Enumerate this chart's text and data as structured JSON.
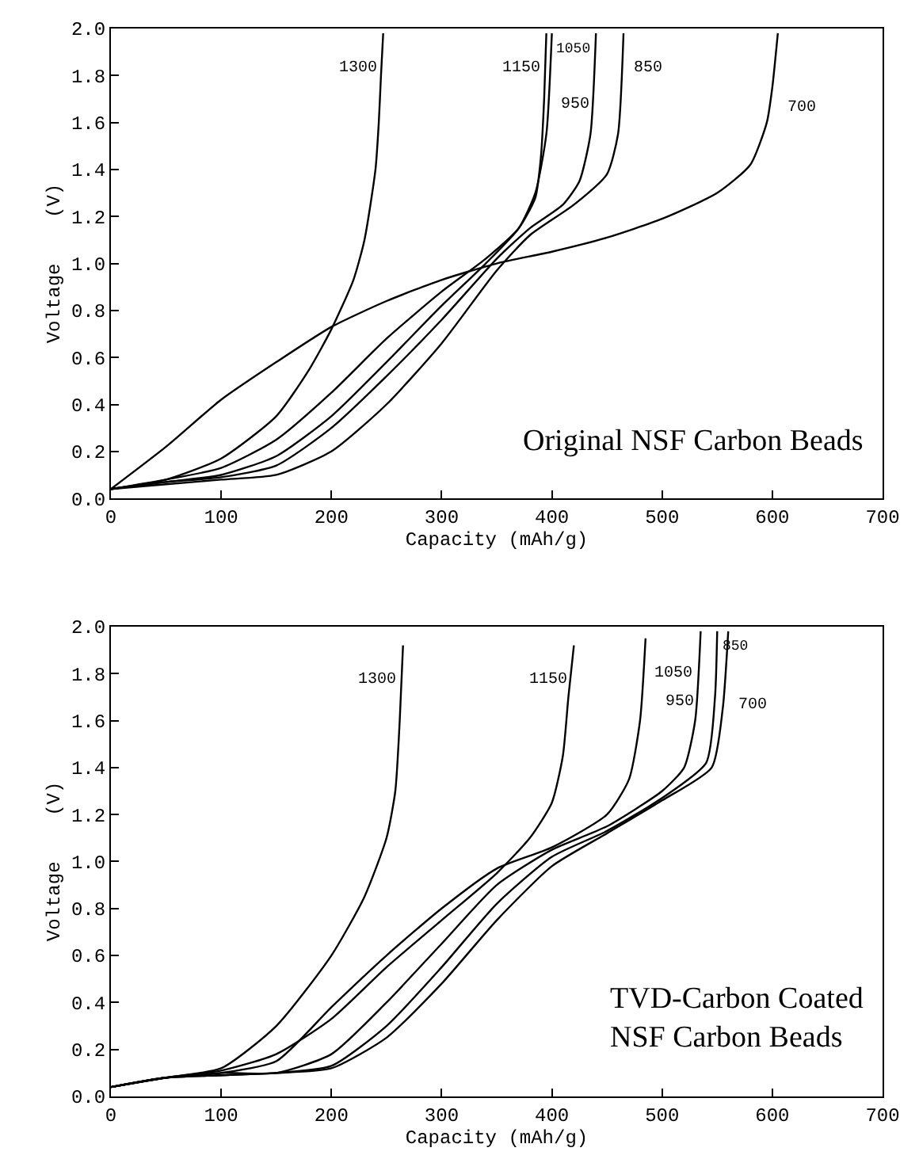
{
  "chart_data": [
    {
      "type": "line",
      "xlabel": "Capacity (mAh/g)",
      "ylabel": "Voltage    (V)",
      "xlim": [
        0,
        700
      ],
      "ylim": [
        0,
        2
      ],
      "xticks": [
        0,
        100,
        200,
        300,
        400,
        500,
        600,
        700
      ],
      "yticks": [
        {
          "value": 0,
          "label": "0.0"
        },
        0.2,
        0.4,
        0.6,
        0.8,
        {
          "value": 1,
          "label": "1.0"
        },
        1.2,
        1.4,
        1.6,
        1.8,
        {
          "value": 2,
          "label": "2.0"
        }
      ],
      "annotations": [
        "Original NSF Carbon Beads"
      ],
      "series": [
        {
          "name": "1300",
          "color": "#000000",
          "x": [
            0,
            50,
            100,
            150,
            180,
            200,
            220,
            230,
            240,
            243,
            245,
            247
          ],
          "values": [
            0.04,
            0.08,
            0.17,
            0.35,
            0.55,
            0.72,
            0.93,
            1.1,
            1.4,
            1.6,
            1.8,
            1.98
          ]
        },
        {
          "name": "1150",
          "color": "#000000",
          "x": [
            0,
            50,
            100,
            150,
            200,
            250,
            300,
            340,
            370,
            385,
            390,
            393,
            395
          ],
          "values": [
            0.04,
            0.08,
            0.13,
            0.25,
            0.45,
            0.68,
            0.88,
            1.02,
            1.15,
            1.28,
            1.45,
            1.7,
            1.98
          ]
        },
        {
          "name": "1050",
          "color": "#000000",
          "x": [
            0,
            50,
            100,
            150,
            200,
            250,
            300,
            340,
            370,
            385,
            395,
            400
          ],
          "values": [
            0.04,
            0.07,
            0.1,
            0.18,
            0.35,
            0.58,
            0.82,
            1.0,
            1.15,
            1.3,
            1.55,
            1.98
          ]
        },
        {
          "name": "950",
          "color": "#000000",
          "x": [
            0,
            50,
            100,
            150,
            200,
            250,
            300,
            350,
            380,
            410,
            425,
            435,
            440
          ],
          "values": [
            0.04,
            0.07,
            0.09,
            0.14,
            0.3,
            0.52,
            0.76,
            1.02,
            1.15,
            1.25,
            1.35,
            1.55,
            1.98
          ]
        },
        {
          "name": "850",
          "color": "#000000",
          "x": [
            0,
            50,
            100,
            150,
            200,
            250,
            300,
            350,
            380,
            420,
            450,
            460,
            465
          ],
          "values": [
            0.04,
            0.06,
            0.08,
            0.1,
            0.2,
            0.4,
            0.66,
            0.97,
            1.12,
            1.25,
            1.38,
            1.55,
            1.98
          ]
        },
        {
          "name": "700",
          "color": "#000000",
          "x": [
            0,
            50,
            100,
            150,
            200,
            250,
            300,
            350,
            400,
            450,
            500,
            550,
            580,
            595,
            600,
            605
          ],
          "values": [
            0.04,
            0.22,
            0.42,
            0.58,
            0.73,
            0.84,
            0.93,
            1.0,
            1.05,
            1.11,
            1.19,
            1.3,
            1.42,
            1.6,
            1.75,
            1.98
          ]
        }
      ]
    },
    {
      "type": "line",
      "xlabel": "Capacity (mAh/g)",
      "ylabel": "Voltage    (V)",
      "xlim": [
        0,
        700
      ],
      "ylim": [
        0,
        2
      ],
      "xticks": [
        0,
        100,
        200,
        300,
        400,
        500,
        600,
        700
      ],
      "yticks": [
        {
          "value": 0,
          "label": "0.0"
        },
        0.2,
        0.4,
        0.6,
        0.8,
        {
          "value": 1,
          "label": "1.0"
        },
        1.2,
        1.4,
        1.6,
        1.8,
        {
          "value": 2,
          "label": "2.0"
        }
      ],
      "annotations": [
        "TVD-Carbon Coated\nNSF Carbon Beads"
      ],
      "series": [
        {
          "name": "1300",
          "color": "#000000",
          "x": [
            0,
            50,
            100,
            150,
            200,
            230,
            250,
            258,
            262,
            265
          ],
          "values": [
            0.04,
            0.08,
            0.12,
            0.3,
            0.6,
            0.85,
            1.1,
            1.3,
            1.6,
            1.92
          ]
        },
        {
          "name": "1150",
          "color": "#000000",
          "x": [
            0,
            50,
            100,
            150,
            200,
            250,
            300,
            350,
            380,
            400,
            410,
            415,
            420
          ],
          "values": [
            0.04,
            0.08,
            0.11,
            0.18,
            0.33,
            0.55,
            0.75,
            0.95,
            1.1,
            1.25,
            1.45,
            1.7,
            1.92
          ]
        },
        {
          "name": "1050",
          "color": "#000000",
          "x": [
            0,
            50,
            100,
            150,
            200,
            250,
            300,
            350,
            400,
            450,
            470,
            480,
            485
          ],
          "values": [
            0.04,
            0.08,
            0.1,
            0.15,
            0.38,
            0.6,
            0.8,
            0.97,
            1.06,
            1.2,
            1.35,
            1.6,
            1.95
          ]
        },
        {
          "name": "950",
          "color": "#000000",
          "x": [
            0,
            50,
            100,
            150,
            200,
            250,
            300,
            350,
            400,
            450,
            500,
            520,
            530,
            535
          ],
          "values": [
            0.04,
            0.08,
            0.1,
            0.1,
            0.18,
            0.4,
            0.65,
            0.9,
            1.05,
            1.15,
            1.3,
            1.4,
            1.6,
            1.98
          ]
        },
        {
          "name": "850",
          "color": "#000000",
          "x": [
            0,
            50,
            100,
            150,
            200,
            250,
            300,
            350,
            400,
            450,
            500,
            540,
            548,
            550
          ],
          "values": [
            0.04,
            0.08,
            0.09,
            0.1,
            0.13,
            0.3,
            0.55,
            0.82,
            1.02,
            1.13,
            1.27,
            1.42,
            1.7,
            1.98
          ]
        },
        {
          "name": "700",
          "color": "#000000",
          "x": [
            0,
            50,
            100,
            150,
            200,
            250,
            300,
            350,
            400,
            450,
            500,
            545,
            555,
            560
          ],
          "values": [
            0.04,
            0.08,
            0.09,
            0.1,
            0.12,
            0.25,
            0.48,
            0.75,
            0.98,
            1.12,
            1.26,
            1.4,
            1.65,
            1.98
          ]
        }
      ]
    }
  ]
}
